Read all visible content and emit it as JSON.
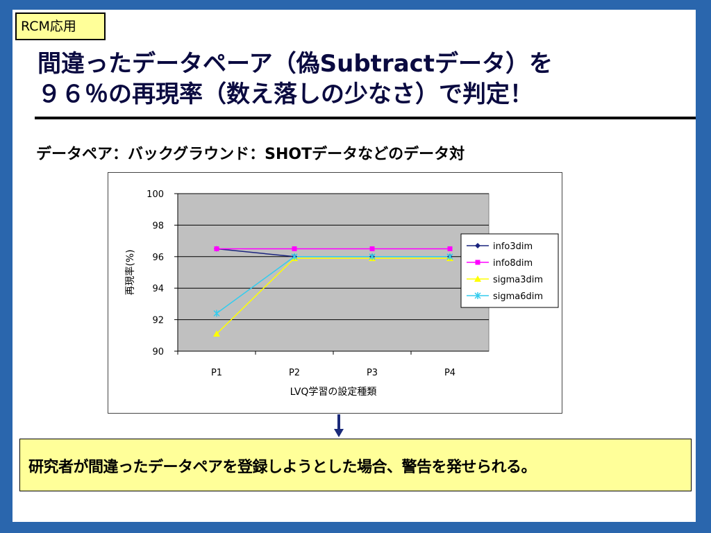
{
  "tag": "RCM応用",
  "title_line1": "間違ったデータペーア（偽Subtractデータ）を",
  "title_line2": "９６％の再現率（数え落しの少なさ）で判定！",
  "subtitle": "データペア：バックグラウンド：SHOTデータなどのデータ対",
  "callout": "研究者が間違ったデータペアを登録しようとした場合、警告を発せられる。",
  "chart_data": {
    "type": "line",
    "title": "",
    "xlabel": "LVQ学習の設定種類",
    "ylabel": "再現率(%)",
    "categories": [
      "P1",
      "P2",
      "P3",
      "P4"
    ],
    "ylim": [
      90,
      100
    ],
    "yticks": [
      90,
      92,
      94,
      96,
      98,
      100
    ],
    "grid": true,
    "legend_position": "right",
    "series": [
      {
        "name": "info3dim",
        "values": [
          96.5,
          96.0,
          96.0,
          96.0
        ],
        "color": "#1a237e",
        "marker": "diamond"
      },
      {
        "name": "info8dim",
        "values": [
          96.5,
          96.5,
          96.5,
          96.5
        ],
        "color": "#ff00ff",
        "marker": "square"
      },
      {
        "name": "sigma3dim",
        "values": [
          91.1,
          95.9,
          95.9,
          95.9
        ],
        "color": "#ffff00",
        "marker": "triangle"
      },
      {
        "name": "sigma6dim",
        "values": [
          92.4,
          96.0,
          96.0,
          96.0
        ],
        "color": "#33ccee",
        "marker": "star"
      }
    ]
  }
}
